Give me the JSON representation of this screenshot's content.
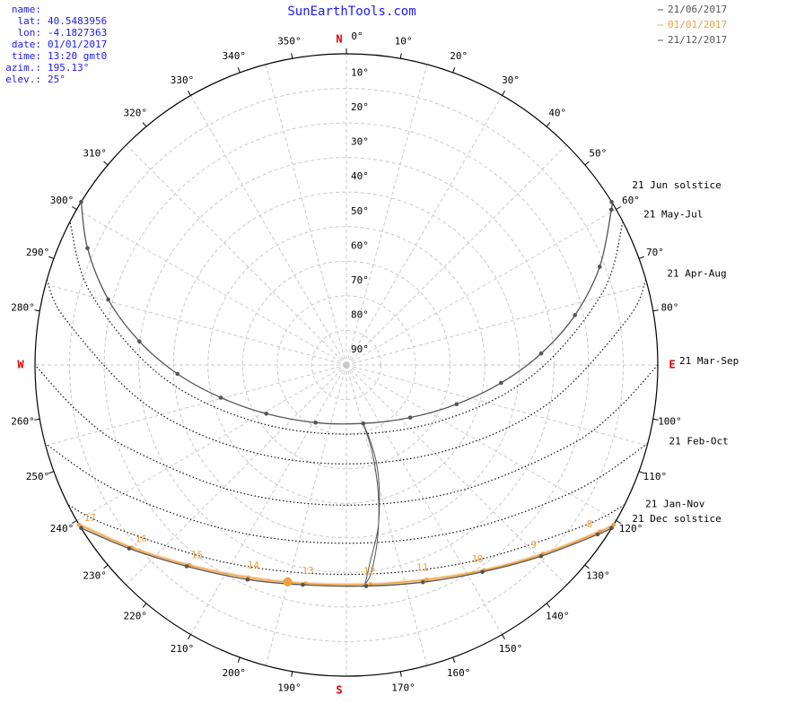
{
  "chart_data": {
    "type": "sunpath",
    "title": "SunEarthTools.com",
    "info": [
      {
        "label": "name:"
      },
      {
        "label": "lat:",
        "value": "40.5483956"
      },
      {
        "label": "lon:",
        "value": "-4.1827363"
      },
      {
        "label": "date:",
        "value": "01/01/2017"
      },
      {
        "label": "time:",
        "value": "13:20 gmt0"
      },
      {
        "label": "azim.:",
        "value": "195.13°"
      },
      {
        "label": "elev.:",
        "value": "25°"
      }
    ],
    "rlim": [
      0,
      90
    ],
    "elevation_ticks": [
      {
        "value": 10,
        "label": "10°"
      },
      {
        "value": 20,
        "label": "20°"
      },
      {
        "value": 30,
        "label": "30°"
      },
      {
        "value": 40,
        "label": "40°"
      },
      {
        "value": 50,
        "label": "50°"
      },
      {
        "value": 60,
        "label": "60°"
      },
      {
        "value": 70,
        "label": "70°"
      },
      {
        "value": 80,
        "label": "80°"
      },
      {
        "value": 90,
        "label": "90°"
      }
    ],
    "azimuth_ticks": [
      {
        "value": 0,
        "label": "0°"
      },
      {
        "value": 10,
        "label": "10°"
      },
      {
        "value": 20,
        "label": "20°"
      },
      {
        "value": 30,
        "label": "30°"
      },
      {
        "value": 40,
        "label": "40°"
      },
      {
        "value": 50,
        "label": "50°"
      },
      {
        "value": 60,
        "label": "60°"
      },
      {
        "value": 70,
        "label": "70°"
      },
      {
        "value": 80,
        "label": "80°"
      },
      {
        "value": 100,
        "label": "100°"
      },
      {
        "value": 110,
        "label": "110°"
      },
      {
        "value": 120,
        "label": "120°"
      },
      {
        "value": 130,
        "label": "130°"
      },
      {
        "value": 140,
        "label": "140°"
      },
      {
        "value": 150,
        "label": "150°"
      },
      {
        "value": 160,
        "label": "160°"
      },
      {
        "value": 170,
        "label": "170°"
      },
      {
        "value": 190,
        "label": "190°"
      },
      {
        "value": 200,
        "label": "200°"
      },
      {
        "value": 210,
        "label": "210°"
      },
      {
        "value": 220,
        "label": "220°"
      },
      {
        "value": 230,
        "label": "230°"
      },
      {
        "value": 240,
        "label": "240°"
      },
      {
        "value": 250,
        "label": "250°"
      },
      {
        "value": 260,
        "label": "260°"
      },
      {
        "value": 280,
        "label": "280°"
      },
      {
        "value": 290,
        "label": "290°"
      },
      {
        "value": 300,
        "label": "300°"
      },
      {
        "value": 310,
        "label": "310°"
      },
      {
        "value": 320,
        "label": "320°"
      },
      {
        "value": 330,
        "label": "330°"
      },
      {
        "value": 340,
        "label": "340°"
      },
      {
        "value": 350,
        "label": "350°"
      }
    ],
    "cardinals": [
      {
        "value": 0,
        "label": "N"
      },
      {
        "value": 90,
        "label": "E"
      },
      {
        "value": 180,
        "label": "S"
      },
      {
        "value": 270,
        "label": "W"
      }
    ],
    "azimuth_grid_step": 15,
    "series": [
      {
        "name": "21/06/2017",
        "label": "21 Jun  solstice",
        "color": "#555555",
        "azimuth": [
          58.4,
          59.6,
          68.8,
          77.7,
          86.6,
          96.6,
          109.6,
          129.5,
          163.9,
          208.1,
          238.7,
          255.4,
          267,
          276.5,
          285.4,
          294.3,
          301.6
        ],
        "elevation": [
          0,
          1.2,
          11.5,
          22.4,
          33.6,
          45,
          56.2,
          66.1,
          72.4,
          71.1,
          62.9,
          52.5,
          41.1,
          29.8,
          18.6,
          7.9,
          0
        ]
      },
      {
        "name": "01/01/2017",
        "color": "#f0a040",
        "azimuth": [
          120.9,
          123.3,
          133.9,
          146.1,
          159.5,
          173.7,
          190.6,
          204.8,
          218.1,
          229.6,
          239.1
        ],
        "elevation": [
          0,
          2.3,
          11.2,
          18.5,
          23.7,
          26.2,
          25.7,
          22.3,
          16.4,
          8.5,
          0
        ],
        "hours": [
          null,
          8,
          9,
          10,
          11,
          12,
          13,
          14,
          15,
          16,
          17
        ]
      },
      {
        "name": "21/12/2017",
        "label": "21 Dec  solstice",
        "color": "#555555",
        "azimuth": [
          121.6,
          124,
          134.5,
          146.7,
          160.6,
          174.9,
          191.2,
          204.7,
          218.4,
          229.8,
          238.4
        ],
        "elevation": [
          0,
          2.4,
          11.1,
          18.4,
          23.4,
          25.8,
          25.2,
          21.7,
          15.7,
          7.8,
          0
        ]
      }
    ],
    "monthly": [
      {
        "label": "21 May-Jul",
        "azimuth": [
          62.6,
          74.2,
          92.8,
          119.3,
          180,
          240.7,
          267.2,
          285.8,
          297.4
        ],
        "elevation": [
          0,
          13.1,
          35.7,
          57.6,
          70,
          57.6,
          35.7,
          13.1,
          0
        ]
      },
      {
        "label": "21 Apr-Aug",
        "azimuth": [
          74.1,
          80.8,
          100.7,
          128.7,
          180,
          231.3,
          259.3,
          279.2,
          285.9
        ],
        "elevation": [
          0,
          7.8,
          30.5,
          51.1,
          61.4,
          51.1,
          30.5,
          7.8,
          0
        ]
      },
      {
        "label": "21 Mar-Sep",
        "azimuth": [
          90,
          99.9,
          110.6,
          138.4,
          180,
          221.6,
          249.4,
          260.1,
          270
        ],
        "elevation": [
          0,
          11.3,
          22.3,
          41.2,
          49.45,
          41.2,
          22.3,
          11.3,
          0
        ]
      },
      {
        "label": "21 Feb-Oct",
        "azimuth": [
          104.6,
          118.7,
          144.9,
          180,
          215.1,
          241.3,
          255.4
        ],
        "elevation": [
          0,
          14.4,
          31.5,
          38.45,
          31.5,
          14.4,
          0
        ]
      },
      {
        "label": "21 Jan-Nov",
        "azimuth": [
          116.7,
          124.8,
          149.1,
          180,
          210.9,
          235.2,
          243.3
        ],
        "elevation": [
          0,
          7.8,
          23.3,
          29.45,
          23.3,
          7.8,
          0
        ]
      }
    ],
    "analemma": {
      "color": "#555555",
      "azimuth": [
        164,
        162.5,
        163,
        165.5,
        169,
        173,
        175,
        176,
        175,
        173,
        169.5,
        166,
        163.5,
        164
      ],
      "elevation": [
        72.4,
        67,
        60,
        52,
        42,
        33,
        27,
        25.8,
        26.5,
        30,
        40,
        52,
        64,
        72.4
      ]
    },
    "sun": {
      "azimuth": 195.13,
      "elevation": 25,
      "color": "#f0a040"
    }
  }
}
